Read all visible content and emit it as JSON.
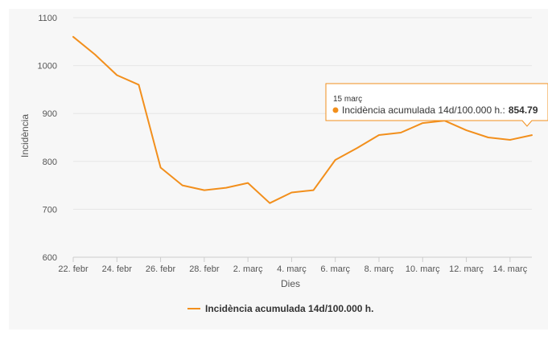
{
  "chart_data": {
    "type": "line",
    "xlabel": "Dies",
    "ylabel": "Incidència",
    "ylim": [
      600,
      1100
    ],
    "yticks": [
      600,
      700,
      800,
      900,
      1000,
      1100
    ],
    "x_tick_labels": [
      "22. febr",
      "24. febr",
      "26. febr",
      "28. febr",
      "2. març",
      "4. març",
      "6. març",
      "8. març",
      "10. març",
      "12. març",
      "14. març"
    ],
    "grid": true,
    "legend_position": "bottom-center",
    "series": [
      {
        "name": "Incidència acumulada 14d/100.000 h.",
        "color": "#f28f1c",
        "x": [
          "22. febr",
          "23. febr",
          "24. febr",
          "25. febr",
          "26. febr",
          "27. febr",
          "28. febr",
          "1. març",
          "2. març",
          "3. març",
          "4. març",
          "5. març",
          "6. març",
          "7. març",
          "8. març",
          "9. març",
          "10. març",
          "11. març",
          "12. març",
          "13. març",
          "14. març",
          "15. març"
        ],
        "values": [
          1060,
          1023,
          980,
          960,
          787,
          750,
          740,
          745,
          755,
          713,
          735,
          740,
          803,
          828,
          855,
          860,
          880,
          885,
          865,
          850,
          845,
          854.79
        ]
      }
    ],
    "tooltip": {
      "date": "15 març",
      "series_label": "Incidència acumulada 14d/100.000 h.:",
      "value": "854.79"
    }
  }
}
